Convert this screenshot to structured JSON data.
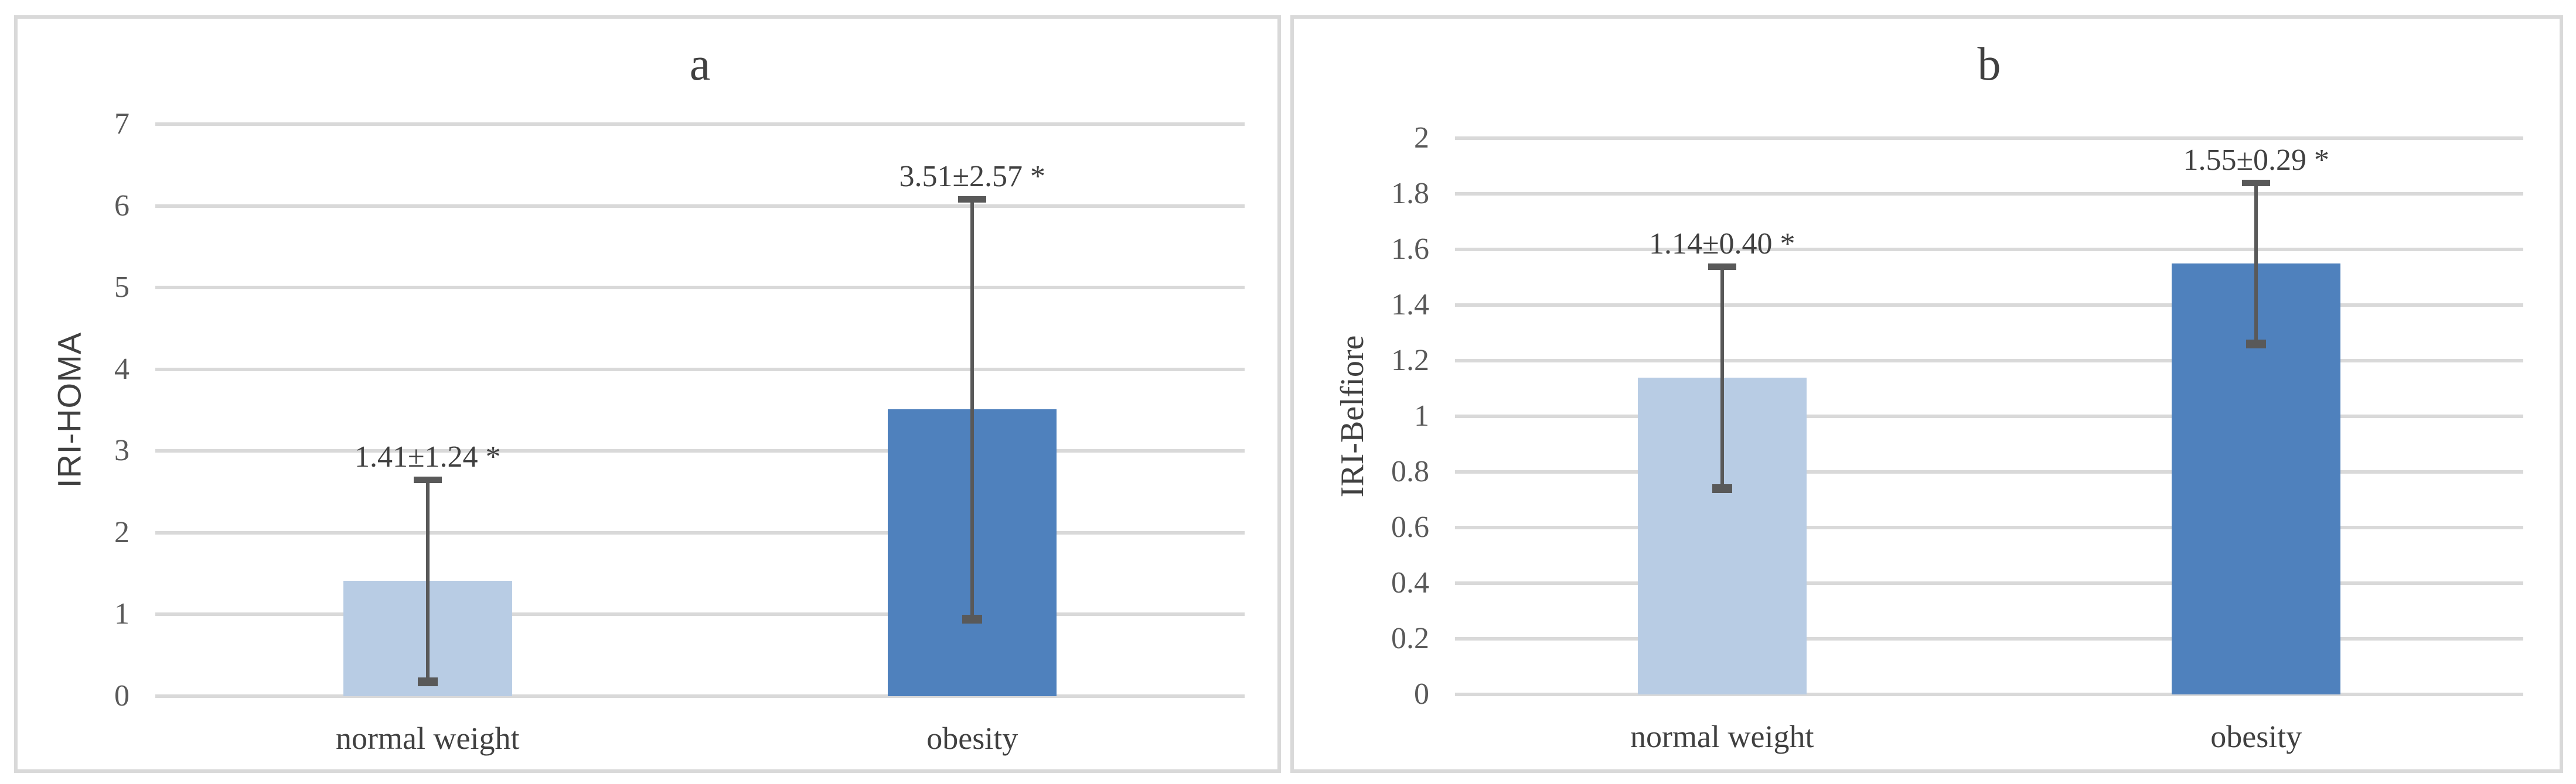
{
  "figure": {
    "description": "Two-panel bar chart comparing insulin resistance indices between normal weight and obesity groups",
    "significance_marker": "*"
  },
  "styles": {
    "bar_color_normal_weight": "#b8cce4",
    "bar_color_obesity": "#4f81bd",
    "gridline_color": "#d9d9d9",
    "panel_border_color": "#d9d9d9",
    "error_bar_color": "#595959",
    "tick_text_color": "#595959",
    "label_text_color": "#404040"
  },
  "chart_data": [
    {
      "type": "bar",
      "title": "a",
      "ylabel": "IRI-HOMA",
      "xlabel": "",
      "categories": [
        "normal weight",
        "obesity"
      ],
      "values": [
        1.41,
        3.51
      ],
      "errors": [
        1.24,
        2.57
      ],
      "data_labels": [
        "1.41±1.24 *",
        "3.51±2.57 *"
      ],
      "bar_colors": [
        "#b8cce4",
        "#4f81bd"
      ],
      "ylim": [
        0,
        7
      ],
      "grid": true,
      "legend": "none",
      "yticks": [
        {
          "value": 0,
          "label": "0"
        },
        {
          "value": 1,
          "label": "1"
        },
        {
          "value": 2,
          "label": "2"
        },
        {
          "value": 3,
          "label": "3"
        },
        {
          "value": 4,
          "label": "4"
        },
        {
          "value": 5,
          "label": "5"
        },
        {
          "value": 6,
          "label": "6"
        },
        {
          "value": 7,
          "label": "7"
        }
      ]
    },
    {
      "type": "bar",
      "title": "b",
      "ylabel": "IRI-Belfiore",
      "xlabel": "",
      "categories": [
        "normal weight",
        "obesity"
      ],
      "values": [
        1.14,
        1.55
      ],
      "errors": [
        0.4,
        0.29
      ],
      "data_labels": [
        "1.14±0.40 *",
        "1.55±0.29 *"
      ],
      "bar_colors": [
        "#b8cce4",
        "#4f81bd"
      ],
      "ylim": [
        0,
        2
      ],
      "grid": true,
      "legend": "none",
      "yticks": [
        {
          "value": 0,
          "label": "0"
        },
        {
          "value": 0.2,
          "label": "0.2"
        },
        {
          "value": 0.4,
          "label": "0.4"
        },
        {
          "value": 0.6,
          "label": "0.6"
        },
        {
          "value": 0.8,
          "label": "0.8"
        },
        {
          "value": 1,
          "label": "1"
        },
        {
          "value": 1.2,
          "label": "1.2"
        },
        {
          "value": 1.4,
          "label": "1.4"
        },
        {
          "value": 1.6,
          "label": "1.6"
        },
        {
          "value": 1.8,
          "label": "1.8"
        },
        {
          "value": 2,
          "label": "2"
        }
      ]
    }
  ]
}
